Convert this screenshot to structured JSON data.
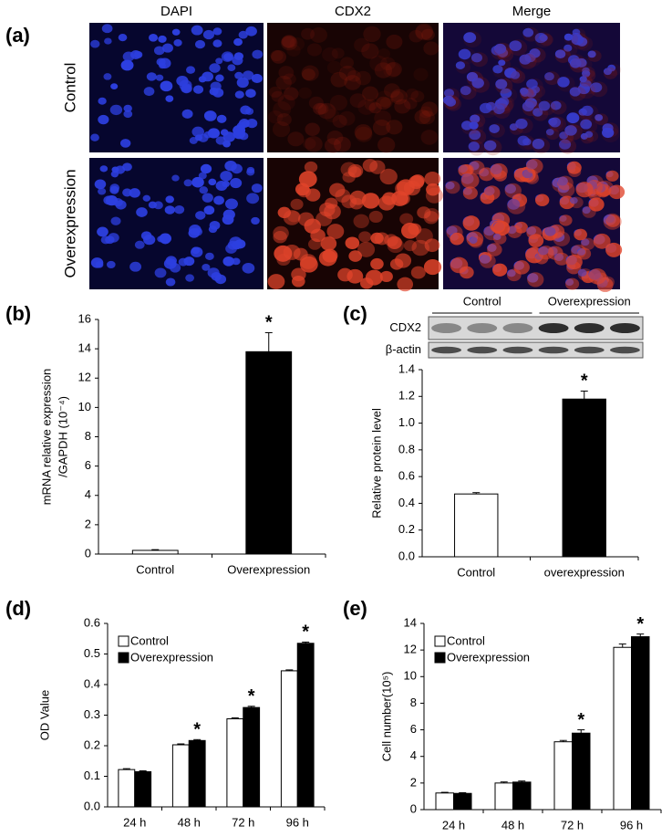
{
  "figure_a": {
    "label": "(a)",
    "columns": [
      "DAPI",
      "CDX2",
      "Merge"
    ],
    "rows": [
      "Control",
      "Overexpression"
    ]
  },
  "chart_data": [
    {
      "type": "bar",
      "label": "(b)",
      "ylabel": [
        "mRNA relative expression",
        "/GAPDH  (10⁻⁴)"
      ],
      "categories": [
        "Control",
        "Overexpression"
      ],
      "values": [
        0.25,
        13.8
      ],
      "errors": [
        0.05,
        1.3
      ],
      "colors": [
        "#ffffff",
        "#000000"
      ],
      "significance": [
        null,
        "*"
      ],
      "ylim": [
        0,
        16
      ],
      "yticks": [
        0,
        2,
        4,
        6,
        8,
        10,
        12,
        14,
        16
      ]
    },
    {
      "type": "bar",
      "label": "(c)",
      "ylabel": [
        "Relative protein level"
      ],
      "blot": {
        "groups": [
          "Control",
          "Overexpression"
        ],
        "bands": [
          "CDX2",
          "β-actin"
        ]
      },
      "categories": [
        "Control",
        "overexpression"
      ],
      "values": [
        0.47,
        1.18
      ],
      "errors": [
        0.01,
        0.06
      ],
      "colors": [
        "#ffffff",
        "#000000"
      ],
      "significance": [
        null,
        "*"
      ],
      "ylim": [
        0,
        1.4
      ],
      "yticks": [
        {
          "value": 0,
          "label": "0.0"
        },
        0.2,
        0.4,
        0.6,
        0.8,
        {
          "value": 1,
          "label": "1.0"
        },
        1.2,
        1.4
      ]
    },
    {
      "type": "bar",
      "label": "(d)",
      "ylabel": [
        "OD Value"
      ],
      "legend": "upper left",
      "categories": [
        "24 h",
        "48 h",
        "72 h",
        "96 h"
      ],
      "series": [
        {
          "name": "Control",
          "color": "#ffffff",
          "values": [
            0.122,
            0.203,
            0.288,
            0.445
          ],
          "errors": [
            0.003,
            0.003,
            0.003,
            0.003
          ],
          "significance": [
            null,
            null,
            null,
            null
          ]
        },
        {
          "name": "Overexpression",
          "color": "#000000",
          "values": [
            0.115,
            0.217,
            0.325,
            0.535
          ],
          "errors": [
            0.003,
            0.003,
            0.004,
            0.004
          ],
          "significance": [
            null,
            "*",
            "*",
            "*"
          ]
        }
      ],
      "ylim": [
        0,
        0.6
      ],
      "yticks": [
        {
          "value": 0,
          "label": "0.0"
        },
        0.1,
        0.2,
        0.3,
        0.4,
        0.5,
        0.6
      ]
    },
    {
      "type": "bar",
      "label": "(e)",
      "ylabel": [
        "Cell number(10⁵)"
      ],
      "legend": "upper left",
      "categories": [
        "24 h",
        "48 h",
        "72 h",
        "96 h"
      ],
      "series": [
        {
          "name": "Control",
          "color": "#ffffff",
          "values": [
            1.25,
            2.0,
            5.1,
            12.2
          ],
          "errors": [
            0.05,
            0.08,
            0.1,
            0.25
          ],
          "significance": [
            null,
            null,
            null,
            null
          ]
        },
        {
          "name": "Overexpression",
          "color": "#000000",
          "values": [
            1.22,
            2.07,
            5.75,
            13.0
          ],
          "errors": [
            0.05,
            0.08,
            0.25,
            0.2
          ],
          "significance": [
            null,
            null,
            "*",
            "*"
          ]
        }
      ],
      "ylim": [
        0,
        14
      ],
      "yticks": [
        0,
        2,
        4,
        6,
        8,
        10,
        12,
        14
      ]
    }
  ]
}
